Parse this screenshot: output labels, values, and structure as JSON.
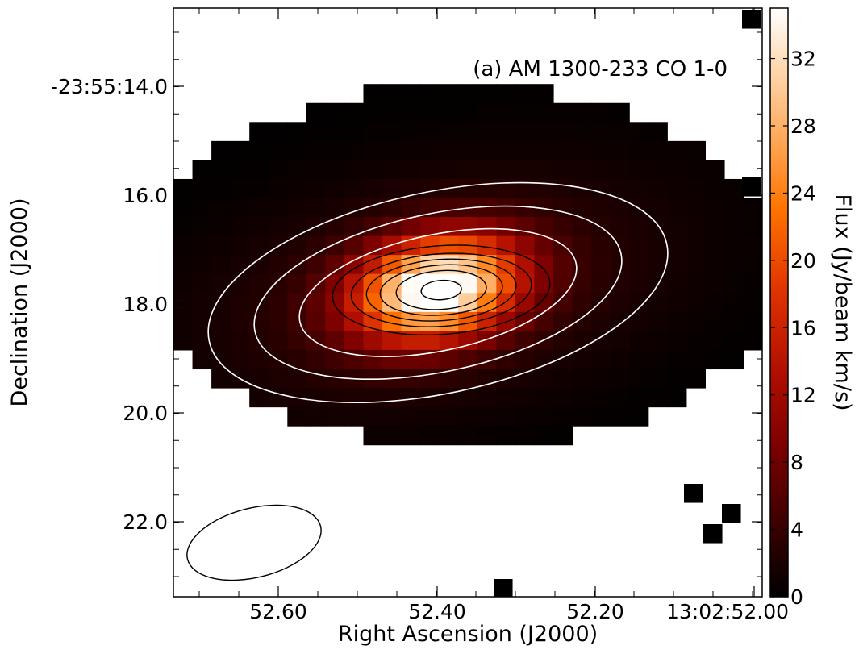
{
  "chart_data": {
    "type": "heatmap",
    "title": "(a) AM 1300-233 CO 1-0",
    "xlabel": "Right Ascension (J2000)",
    "ylabel": "Declination (J2000)",
    "x_tick_labels": [
      "52.60",
      "52.40",
      "52.20",
      "13:02:52.00"
    ],
    "y_tick_labels": [
      "-23:55:14.0",
      "16.0",
      "18.0",
      "20.0",
      "22.0"
    ],
    "colorbar": {
      "label": "Flux (Jy/beam km/s)",
      "range": [
        0,
        35
      ],
      "ticks": [
        0,
        4,
        8,
        12,
        16,
        20,
        24,
        28,
        32
      ],
      "tick_labels": [
        "0",
        "4",
        "8",
        "12",
        "16",
        "20",
        "24",
        "28",
        "32"
      ],
      "colormap": [
        "#000000",
        "#3a0000",
        "#7a0000",
        "#b00e00",
        "#e03300",
        "#ff7400",
        "#ffa95a",
        "#ffd9b2",
        "#ffffff"
      ]
    },
    "emission": {
      "peak_flux": 35,
      "peak_ra_offset": 52.375,
      "peak_dec_offset": 17.8,
      "units": "Jy/beam km/s"
    },
    "contours_white": 3,
    "contours_black": 6,
    "beam": "ellipse, lower-left",
    "grid": false
  }
}
